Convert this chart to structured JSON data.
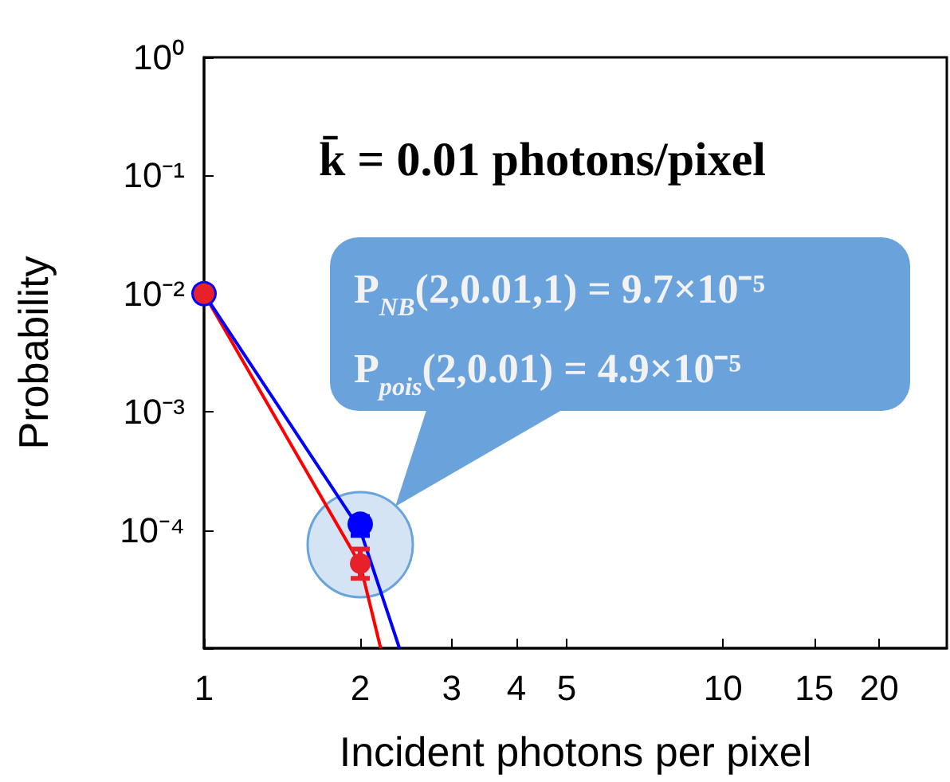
{
  "chart_data": {
    "type": "line",
    "xlabel": "Incident photons per pixel",
    "ylabel": "Probability",
    "annotations": [
      "k̄ = 0.01 photons/pixel",
      "P$_{NB}$(2,0.01,1) = 9.7×10⁻⁵",
      "P$_{pois}$(2,0.01) = 4.9×10⁻⁵"
    ],
    "log": "xy",
    "grid": false,
    "xlim": [
      1,
      27
    ],
    "xticks": [
      1,
      2,
      3,
      4,
      5,
      10,
      15,
      20
    ],
    "ylim": [
      1e-05,
      1
    ],
    "yticks": [
      {
        "value": 1,
        "label": "10⁰"
      },
      {
        "value": 0.1,
        "label": "10⁻¹"
      },
      {
        "value": 0.01,
        "label": "10⁻²"
      },
      {
        "value": 0.001,
        "label": "10⁻³"
      },
      {
        "value": 0.0001,
        "label": "10⁻⁴"
      },
      {
        "value": 1e-05,
        "label": null
      }
    ],
    "series": [
      {
        "type": "line",
        "color": "#ff0000",
        "marker": "none",
        "x": [
          1,
          2,
          2.19
        ],
        "values": [
          0.01,
          5.1e-05,
          1e-05
        ]
      },
      {
        "type": "line",
        "color": "#0000ff",
        "marker": "none",
        "x": [
          1,
          2,
          2.38
        ],
        "values": [
          0.01,
          0.0001,
          1e-05
        ]
      },
      {
        "type": "scatter",
        "color": "#0000ff",
        "marker": "circle",
        "x": [
          1,
          2
        ],
        "values": [
          0.01,
          0.000112
        ],
        "errors": [
          null,
          [
            9e-05,
            0.00013
          ]
        ]
      },
      {
        "type": "scatter",
        "color": "#e8202a",
        "marker": "circle",
        "x": [
          1,
          2
        ],
        "values": [
          0.01,
          5.2e-05
        ],
        "errors": [
          null,
          [
            3.9e-05,
            6.9e-05
          ]
        ]
      }
    ]
  }
}
